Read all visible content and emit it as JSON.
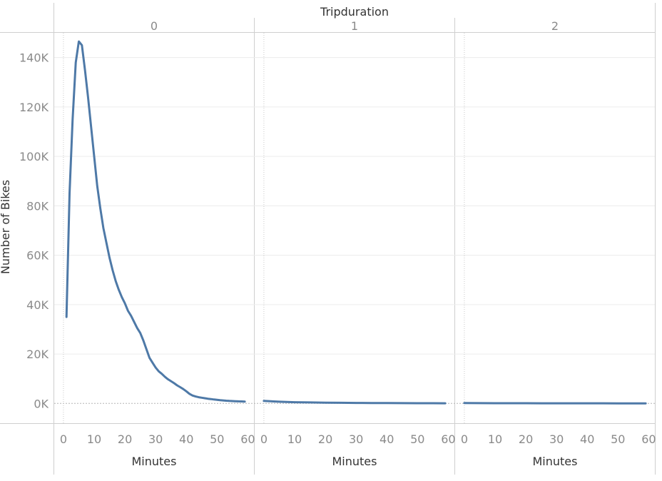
{
  "chart_data": {
    "type": "line",
    "title": "Tripduration",
    "xlabel": "Minutes",
    "ylabel": "Number of Bikes",
    "ylim": [
      -8000,
      150000
    ],
    "xlim": [
      -3,
      62
    ],
    "x_ticks": [
      "0",
      "10",
      "20",
      "30",
      "40",
      "50",
      "60"
    ],
    "y_ticks": [
      "0K",
      "20K",
      "40K",
      "60K",
      "80K",
      "100K",
      "120K",
      "140K"
    ],
    "grid": true,
    "line_color": "#4e79a7",
    "panels": [
      {
        "header": "0",
        "x": [
          1,
          2,
          3,
          4,
          5,
          6,
          7,
          8,
          9,
          10,
          11,
          12,
          13,
          14,
          15,
          16,
          17,
          18,
          19,
          20,
          21,
          22,
          23,
          24,
          25,
          26,
          27,
          28,
          29,
          30,
          31,
          32,
          33,
          34,
          35,
          36,
          37,
          38,
          39,
          40,
          41,
          42,
          43,
          44,
          45,
          46,
          47,
          48,
          49,
          50,
          51,
          52,
          53,
          54,
          55,
          56,
          57,
          58,
          59
        ],
        "values": [
          35000,
          85000,
          115000,
          138000,
          146500,
          145000,
          135000,
          124000,
          112000,
          100000,
          88000,
          79000,
          71000,
          65000,
          59000,
          54000,
          49500,
          46000,
          43000,
          40500,
          37500,
          35500,
          33000,
          30500,
          28500,
          25500,
          22000,
          18500,
          16500,
          14500,
          13000,
          12000,
          10800,
          9800,
          9000,
          8200,
          7300,
          6600,
          5800,
          4900,
          3900,
          3200,
          2800,
          2500,
          2300,
          2100,
          1900,
          1750,
          1600,
          1450,
          1300,
          1200,
          1100,
          1000,
          950,
          900,
          850,
          800,
          750
        ]
      },
      {
        "header": "1",
        "x": [
          0,
          5,
          10,
          15,
          20,
          25,
          30,
          35,
          40,
          45,
          50,
          55,
          59
        ],
        "values": [
          1000,
          700,
          500,
          400,
          300,
          250,
          200,
          170,
          140,
          120,
          100,
          80,
          70
        ]
      },
      {
        "header": "2",
        "x": [
          0,
          5,
          10,
          15,
          20,
          25,
          30,
          35,
          40,
          45,
          50,
          55,
          59
        ],
        "values": [
          150,
          120,
          100,
          90,
          80,
          70,
          60,
          55,
          50,
          45,
          40,
          35,
          30
        ]
      }
    ]
  }
}
